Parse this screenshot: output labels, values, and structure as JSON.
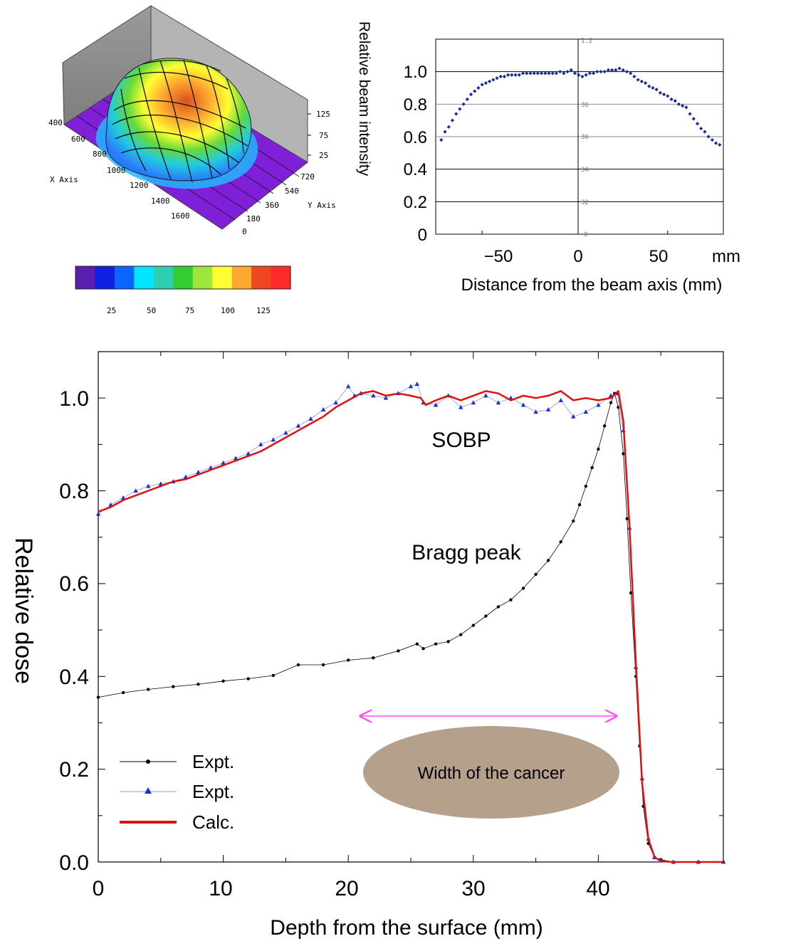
{
  "chart_data": [
    {
      "type": "surface",
      "x_axis_label": "X Axis",
      "y_axis_label": "Y Axis",
      "x_ticks": [
        "400",
        "600",
        "800",
        "1000",
        "1200",
        "1400",
        "1600"
      ],
      "y_ticks": [
        "0",
        "180",
        "360",
        "540",
        "720"
      ],
      "z_ticks": [
        "25",
        "75",
        "125"
      ],
      "colorbar_ticks": [
        "25",
        "50",
        "75",
        "100",
        "125"
      ],
      "colorbar_colors": [
        "#5a1fb0",
        "#1020e0",
        "#0a66ff",
        "#00e6ff",
        "#2cd0b0",
        "#33cc33",
        "#9ee63a",
        "#ffff33",
        "#ffa830",
        "#f0481e",
        "#ff2a2a"
      ]
    },
    {
      "type": "scatter",
      "ylabel": "Relative beam intensity",
      "xlabel": "Distance from the beam axis (mm)",
      "x_unit_label": "mm",
      "xlim": [
        -75,
        80
      ],
      "ylim": [
        0,
        1.2
      ],
      "y_ticks": [
        "0",
        "0.2",
        "0.4",
        "0.6",
        "0.8",
        "1.0"
      ],
      "x_ticks": [
        "−50",
        "0",
        "50"
      ],
      "inner_ticks": [
        "1.2",
        "36",
        "36",
        "34",
        "32",
        "0"
      ],
      "series": [
        {
          "color": "#1a2a9a",
          "x": [
            -72,
            -70,
            -68,
            -66,
            -64,
            -62,
            -60,
            -58,
            -56,
            -54,
            -52,
            -50,
            -48,
            -46,
            -44,
            -42,
            -40,
            -38,
            -36,
            -34,
            -32,
            -30,
            -28,
            -26,
            -24,
            -22,
            -20,
            -18,
            -16,
            -14,
            -12,
            -10,
            -8,
            -6,
            -4,
            -2,
            0,
            2,
            4,
            6,
            8,
            10,
            12,
            14,
            16,
            18,
            20,
            22,
            24,
            26,
            28,
            30,
            32,
            34,
            36,
            38,
            40,
            42,
            44,
            46,
            48,
            50,
            52,
            54,
            56,
            58,
            60,
            62,
            64,
            66,
            68,
            70,
            72,
            74,
            76,
            78
          ],
          "y": [
            0.58,
            0.63,
            0.66,
            0.7,
            0.74,
            0.77,
            0.8,
            0.83,
            0.86,
            0.88,
            0.9,
            0.92,
            0.93,
            0.94,
            0.95,
            0.96,
            0.97,
            0.97,
            0.98,
            0.98,
            0.98,
            0.98,
            0.99,
            0.99,
            0.99,
            0.99,
            0.99,
            0.99,
            0.99,
            0.99,
            0.99,
            0.99,
            1.0,
            0.99,
            1.0,
            1.01,
            0.99,
            0.98,
            0.97,
            0.98,
            0.99,
            0.99,
            1.0,
            1.0,
            1.0,
            1.01,
            1.01,
            1.01,
            1.02,
            1.01,
            1.0,
            0.99,
            0.97,
            0.95,
            0.94,
            0.93,
            0.91,
            0.9,
            0.89,
            0.87,
            0.86,
            0.85,
            0.83,
            0.82,
            0.8,
            0.79,
            0.78,
            0.74,
            0.71,
            0.68,
            0.65,
            0.63,
            0.6,
            0.58,
            0.56,
            0.55
          ]
        }
      ]
    },
    {
      "type": "line",
      "xlabel": "Depth from the surface (mm)",
      "ylabel": "Relative dose",
      "xlim": [
        0,
        50
      ],
      "ylim": [
        0,
        1.1
      ],
      "x_ticks": [
        "0",
        "10",
        "20",
        "30",
        "40"
      ],
      "y_ticks": [
        "0.0",
        "0.2",
        "0.4",
        "0.6",
        "0.8",
        "1.0"
      ],
      "annotations": {
        "sobp": "SOBP",
        "bragg": "Bragg peak",
        "cancer": "Width of the cancer",
        "cancer_fill": "#b5a08c",
        "arrow_color": "#ff4df2"
      },
      "series": [
        {
          "name": "Expt.",
          "marker": "dot",
          "color": "#000000",
          "x": [
            0,
            2,
            4,
            6,
            8,
            10,
            12,
            14,
            16,
            18,
            20,
            22,
            24,
            25.5,
            26,
            27,
            28,
            29,
            30,
            31,
            32,
            33,
            34,
            35,
            36,
            37,
            38,
            38.5,
            39,
            39.5,
            40,
            40.5,
            41,
            41.3,
            41.6,
            42,
            42.3,
            42.6,
            43,
            43.3,
            43.6,
            44,
            44.5,
            45,
            46,
            48,
            50
          ],
          "y": [
            0.355,
            0.365,
            0.372,
            0.378,
            0.383,
            0.39,
            0.395,
            0.402,
            0.425,
            0.425,
            0.435,
            0.44,
            0.455,
            0.47,
            0.46,
            0.47,
            0.475,
            0.49,
            0.51,
            0.53,
            0.55,
            0.565,
            0.59,
            0.62,
            0.65,
            0.69,
            0.735,
            0.77,
            0.81,
            0.85,
            0.89,
            0.94,
            0.99,
            1.01,
            0.98,
            0.88,
            0.74,
            0.58,
            0.4,
            0.25,
            0.12,
            0.04,
            0.01,
            0.005,
            0,
            0,
            0
          ]
        },
        {
          "name": "Expt.",
          "marker": "triangle",
          "color": "#1c2fd6",
          "x": [
            0,
            1,
            2,
            3,
            4,
            5,
            6,
            7,
            8,
            9,
            10,
            11,
            12,
            13,
            14,
            15,
            16,
            17,
            18,
            19,
            20,
            20.5,
            21,
            22,
            23,
            24,
            25,
            25.5,
            26,
            27,
            28,
            29,
            30,
            31,
            32,
            33,
            34,
            35,
            36,
            37,
            38,
            39,
            40,
            41,
            41.5,
            42,
            42.5,
            43,
            43.5,
            44,
            44.5,
            45,
            46,
            48,
            50
          ],
          "y": [
            0.75,
            0.77,
            0.785,
            0.8,
            0.81,
            0.815,
            0.82,
            0.83,
            0.84,
            0.85,
            0.86,
            0.87,
            0.88,
            0.9,
            0.91,
            0.925,
            0.94,
            0.955,
            0.975,
            0.99,
            1.025,
            1.005,
            1.01,
            1.005,
            1.0,
            1.01,
            1.025,
            1.03,
            0.99,
            0.985,
            1.005,
            0.98,
            0.99,
            1.005,
            0.99,
            1.0,
            0.985,
            0.97,
            0.975,
            0.995,
            0.96,
            0.97,
            0.985,
            1.005,
            1.01,
            0.93,
            0.72,
            0.42,
            0.18,
            0.05,
            0.01,
            0.003,
            0,
            0,
            0
          ]
        },
        {
          "name": "Calc.",
          "marker": "line",
          "color": "#e01010",
          "x": [
            0,
            1,
            2,
            3,
            4,
            5,
            6,
            7,
            8,
            9,
            10,
            11,
            12,
            13,
            14,
            15,
            16,
            17,
            18,
            19,
            20,
            21,
            22,
            23,
            24,
            25,
            25.8,
            26.2,
            27,
            28,
            29,
            30,
            31,
            32,
            33,
            34,
            35,
            36,
            37,
            38,
            39,
            40,
            41,
            41.6,
            42,
            42.5,
            43,
            43.5,
            44,
            44.5,
            45,
            46,
            48,
            50
          ],
          "y": [
            0.755,
            0.765,
            0.78,
            0.79,
            0.8,
            0.81,
            0.82,
            0.825,
            0.835,
            0.845,
            0.855,
            0.865,
            0.875,
            0.885,
            0.9,
            0.915,
            0.93,
            0.945,
            0.96,
            0.98,
            0.995,
            1.01,
            1.015,
            1.005,
            1.01,
            1.005,
            1.0,
            0.985,
            0.995,
            1.005,
            0.995,
            1.005,
            1.015,
            1.01,
            0.995,
            1.005,
            1.0,
            1.005,
            1.015,
            0.995,
            1.0,
            0.995,
            1.0,
            1.015,
            0.95,
            0.72,
            0.43,
            0.17,
            0.05,
            0.01,
            0.002,
            0,
            0,
            0
          ]
        }
      ]
    }
  ]
}
